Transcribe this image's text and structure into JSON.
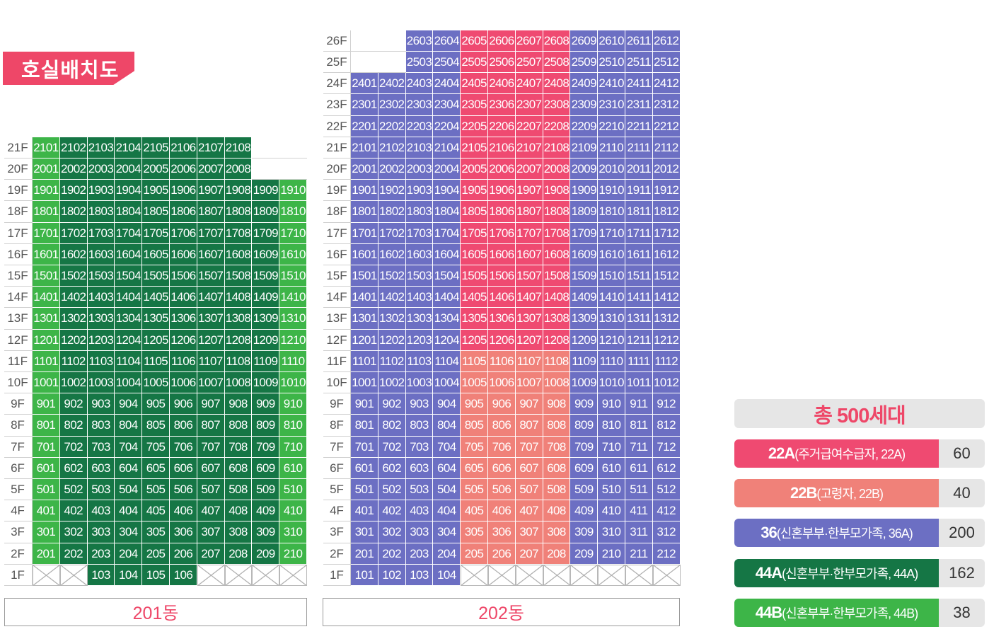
{
  "title": "호실배치도",
  "colors": {
    "22A": "#ef4a71",
    "22B": "#f08179",
    "36": "#6c6fc3",
    "44A": "#157645",
    "44B": "#3db548"
  },
  "buildings": [
    {
      "name": "201동",
      "floor_labels": [
        "1F",
        "2F",
        "3F",
        "4F",
        "5F",
        "6F",
        "7F",
        "8F",
        "9F",
        "10F",
        "11F",
        "12F",
        "13F",
        "14F",
        "15F",
        "16F",
        "17F",
        "18F",
        "19F",
        "20F",
        "21F"
      ],
      "floors": [
        {
          "floor": 1,
          "line_types": [
            "x",
            "x",
            "44A",
            "44A",
            "44A",
            "44A",
            "x",
            "x",
            "x",
            "x"
          ]
        },
        {
          "floor": 2,
          "line_types": [
            "44B",
            "44A",
            "44A",
            "44A",
            "44A",
            "44A",
            "44A",
            "44A",
            "44A",
            "44B"
          ]
        },
        {
          "floor": 3,
          "line_types": [
            "44B",
            "44A",
            "44A",
            "44A",
            "44A",
            "44A",
            "44A",
            "44A",
            "44A",
            "44B"
          ]
        },
        {
          "floor": 4,
          "line_types": [
            "44B",
            "44A",
            "44A",
            "44A",
            "44A",
            "44A",
            "44A",
            "44A",
            "44A",
            "44B"
          ]
        },
        {
          "floor": 5,
          "line_types": [
            "44B",
            "44A",
            "44A",
            "44A",
            "44A",
            "44A",
            "44A",
            "44A",
            "44A",
            "44B"
          ]
        },
        {
          "floor": 6,
          "line_types": [
            "44B",
            "44A",
            "44A",
            "44A",
            "44A",
            "44A",
            "44A",
            "44A",
            "44A",
            "44B"
          ]
        },
        {
          "floor": 7,
          "line_types": [
            "44B",
            "44A",
            "44A",
            "44A",
            "44A",
            "44A",
            "44A",
            "44A",
            "44A",
            "44B"
          ]
        },
        {
          "floor": 8,
          "line_types": [
            "44B",
            "44A",
            "44A",
            "44A",
            "44A",
            "44A",
            "44A",
            "44A",
            "44A",
            "44B"
          ]
        },
        {
          "floor": 9,
          "line_types": [
            "44B",
            "44A",
            "44A",
            "44A",
            "44A",
            "44A",
            "44A",
            "44A",
            "44A",
            "44B"
          ]
        },
        {
          "floor": 10,
          "line_types": [
            "44B",
            "44A",
            "44A",
            "44A",
            "44A",
            "44A",
            "44A",
            "44A",
            "44A",
            "44B"
          ]
        },
        {
          "floor": 11,
          "line_types": [
            "44B",
            "44A",
            "44A",
            "44A",
            "44A",
            "44A",
            "44A",
            "44A",
            "44A",
            "44B"
          ]
        },
        {
          "floor": 12,
          "line_types": [
            "44B",
            "44A",
            "44A",
            "44A",
            "44A",
            "44A",
            "44A",
            "44A",
            "44A",
            "44B"
          ]
        },
        {
          "floor": 13,
          "line_types": [
            "44B",
            "44A",
            "44A",
            "44A",
            "44A",
            "44A",
            "44A",
            "44A",
            "44A",
            "44B"
          ]
        },
        {
          "floor": 14,
          "line_types": [
            "44B",
            "44A",
            "44A",
            "44A",
            "44A",
            "44A",
            "44A",
            "44A",
            "44A",
            "44B"
          ]
        },
        {
          "floor": 15,
          "line_types": [
            "44B",
            "44A",
            "44A",
            "44A",
            "44A",
            "44A",
            "44A",
            "44A",
            "44A",
            "44B"
          ]
        },
        {
          "floor": 16,
          "line_types": [
            "44B",
            "44A",
            "44A",
            "44A",
            "44A",
            "44A",
            "44A",
            "44A",
            "44A",
            "44B"
          ]
        },
        {
          "floor": 17,
          "line_types": [
            "44B",
            "44A",
            "44A",
            "44A",
            "44A",
            "44A",
            "44A",
            "44A",
            "44A",
            "44B"
          ]
        },
        {
          "floor": 18,
          "line_types": [
            "44B",
            "44A",
            "44A",
            "44A",
            "44A",
            "44A",
            "44A",
            "44A",
            "44A",
            "44B"
          ]
        },
        {
          "floor": 19,
          "line_types": [
            "44B",
            "44A",
            "44A",
            "44A",
            "44A",
            "44A",
            "44A",
            "44A",
            "44A",
            "44B"
          ]
        },
        {
          "floor": 20,
          "line_types": [
            "44B",
            "44A",
            "44A",
            "44A",
            "44A",
            "44A",
            "44A",
            "44A",
            null,
            null
          ]
        },
        {
          "floor": 21,
          "line_types": [
            "44B",
            "44A",
            "44A",
            "44A",
            "44A",
            "44A",
            "44A",
            "44A",
            null,
            null
          ]
        }
      ]
    },
    {
      "name": "202동",
      "floor_labels": [
        "1F",
        "2F",
        "3F",
        "4F",
        "5F",
        "6F",
        "7F",
        "8F",
        "9F",
        "10F",
        "11F",
        "12F",
        "13F",
        "14F",
        "15F",
        "16F",
        "17F",
        "18F",
        "19F",
        "20F",
        "21F",
        "22F",
        "23F",
        "24F",
        "25F",
        "26F"
      ],
      "floors": [
        {
          "floor": 1,
          "line_types": [
            "36",
            "36",
            "36",
            "36",
            "x",
            "x",
            "x",
            "x",
            "x",
            "x",
            "x",
            "x"
          ]
        },
        {
          "floor": 2,
          "line_types": [
            "36",
            "36",
            "36",
            "36",
            "22B",
            "22B",
            "22B",
            "22B",
            "36",
            "36",
            "36",
            "36"
          ]
        },
        {
          "floor": 3,
          "line_types": [
            "36",
            "36",
            "36",
            "36",
            "22B",
            "22B",
            "22B",
            "22B",
            "36",
            "36",
            "36",
            "36"
          ]
        },
        {
          "floor": 4,
          "line_types": [
            "36",
            "36",
            "36",
            "36",
            "22B",
            "22B",
            "22B",
            "22B",
            "36",
            "36",
            "36",
            "36"
          ]
        },
        {
          "floor": 5,
          "line_types": [
            "36",
            "36",
            "36",
            "36",
            "22B",
            "22B",
            "22B",
            "22B",
            "36",
            "36",
            "36",
            "36"
          ]
        },
        {
          "floor": 6,
          "line_types": [
            "36",
            "36",
            "36",
            "36",
            "22B",
            "22B",
            "22B",
            "22B",
            "36",
            "36",
            "36",
            "36"
          ]
        },
        {
          "floor": 7,
          "line_types": [
            "36",
            "36",
            "36",
            "36",
            "22B",
            "22B",
            "22B",
            "22B",
            "36",
            "36",
            "36",
            "36"
          ]
        },
        {
          "floor": 8,
          "line_types": [
            "36",
            "36",
            "36",
            "36",
            "22B",
            "22B",
            "22B",
            "22B",
            "36",
            "36",
            "36",
            "36"
          ]
        },
        {
          "floor": 9,
          "line_types": [
            "36",
            "36",
            "36",
            "36",
            "22B",
            "22B",
            "22B",
            "22B",
            "36",
            "36",
            "36",
            "36"
          ]
        },
        {
          "floor": 10,
          "line_types": [
            "36",
            "36",
            "36",
            "36",
            "22B",
            "22B",
            "22B",
            "22B",
            "36",
            "36",
            "36",
            "36"
          ]
        },
        {
          "floor": 11,
          "line_types": [
            "36",
            "36",
            "36",
            "36",
            "22B",
            "22B",
            "22B",
            "22B",
            "36",
            "36",
            "36",
            "36"
          ]
        },
        {
          "floor": 12,
          "line_types": [
            "36",
            "36",
            "36",
            "36",
            "22A",
            "22A",
            "22A",
            "22A",
            "36",
            "36",
            "36",
            "36"
          ]
        },
        {
          "floor": 13,
          "line_types": [
            "36",
            "36",
            "36",
            "36",
            "22A",
            "22A",
            "22A",
            "22A",
            "36",
            "36",
            "36",
            "36"
          ]
        },
        {
          "floor": 14,
          "line_types": [
            "36",
            "36",
            "36",
            "36",
            "22A",
            "22A",
            "22A",
            "22A",
            "36",
            "36",
            "36",
            "36"
          ]
        },
        {
          "floor": 15,
          "line_types": [
            "36",
            "36",
            "36",
            "36",
            "22A",
            "22A",
            "22A",
            "22A",
            "36",
            "36",
            "36",
            "36"
          ]
        },
        {
          "floor": 16,
          "line_types": [
            "36",
            "36",
            "36",
            "36",
            "22A",
            "22A",
            "22A",
            "22A",
            "36",
            "36",
            "36",
            "36"
          ]
        },
        {
          "floor": 17,
          "line_types": [
            "36",
            "36",
            "36",
            "36",
            "22A",
            "22A",
            "22A",
            "22A",
            "36",
            "36",
            "36",
            "36"
          ]
        },
        {
          "floor": 18,
          "line_types": [
            "36",
            "36",
            "36",
            "36",
            "22A",
            "22A",
            "22A",
            "22A",
            "36",
            "36",
            "36",
            "36"
          ]
        },
        {
          "floor": 19,
          "line_types": [
            "36",
            "36",
            "36",
            "36",
            "22A",
            "22A",
            "22A",
            "22A",
            "36",
            "36",
            "36",
            "36"
          ]
        },
        {
          "floor": 20,
          "line_types": [
            "36",
            "36",
            "36",
            "36",
            "22A",
            "22A",
            "22A",
            "22A",
            "36",
            "36",
            "36",
            "36"
          ]
        },
        {
          "floor": 21,
          "line_types": [
            "36",
            "36",
            "36",
            "36",
            "22A",
            "22A",
            "22A",
            "22A",
            "36",
            "36",
            "36",
            "36"
          ]
        },
        {
          "floor": 22,
          "line_types": [
            "36",
            "36",
            "36",
            "36",
            "22A",
            "22A",
            "22A",
            "22A",
            "36",
            "36",
            "36",
            "36"
          ]
        },
        {
          "floor": 23,
          "line_types": [
            "36",
            "36",
            "36",
            "36",
            "22A",
            "22A",
            "22A",
            "22A",
            "36",
            "36",
            "36",
            "36"
          ]
        },
        {
          "floor": 24,
          "line_types": [
            "36",
            "36",
            "36",
            "36",
            "22A",
            "22A",
            "22A",
            "22A",
            "36",
            "36",
            "36",
            "36"
          ]
        },
        {
          "floor": 25,
          "line_types": [
            null,
            null,
            "36",
            "36",
            "22A",
            "22A",
            "22A",
            "22A",
            "36",
            "36",
            "36",
            "36"
          ]
        },
        {
          "floor": 26,
          "line_types": [
            null,
            null,
            "36",
            "36",
            "22A",
            "22A",
            "22A",
            "22A",
            "36",
            "36",
            "36",
            "36"
          ]
        }
      ]
    }
  ],
  "summary": {
    "total": "총 500세대",
    "legend": [
      {
        "type": "22A",
        "label_bold": "22A",
        "label_rest": "(주거급여수급자, 22A)",
        "count": "60"
      },
      {
        "type": "22B",
        "label_bold": "22B",
        "label_rest": "(고령자, 22B)",
        "count": "40"
      },
      {
        "type": "36",
        "label_bold": "36",
        "label_rest": "(신혼부부·한부모가족, 36A)",
        "count": "200"
      },
      {
        "type": "44A",
        "label_bold": "44A",
        "label_rest": "(신혼부부·한부모가족, 44A)",
        "count": "162"
      },
      {
        "type": "44B",
        "label_bold": "44B",
        "label_rest": "(신혼부부·한부모가족, 44B)",
        "count": "38"
      }
    ]
  }
}
